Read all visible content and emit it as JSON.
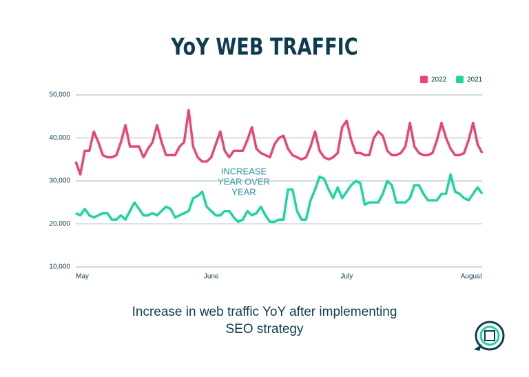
{
  "chart_data": {
    "type": "line",
    "title": "YoY WEB TRAFFIC",
    "caption": [
      "Increase in web traffic YoY after implementing",
      "SEO strategy"
    ],
    "annotation": [
      "INCREASE",
      "YEAR OVER",
      "YEAR"
    ],
    "categories": [
      "May",
      null,
      null,
      null,
      null,
      null,
      null,
      null,
      null,
      null,
      null,
      null,
      null,
      null,
      null,
      null,
      null,
      null,
      null,
      null,
      null,
      null,
      null,
      null,
      null,
      null,
      null,
      null,
      null,
      null,
      "June",
      null,
      null,
      null,
      null,
      null,
      null,
      null,
      null,
      null,
      null,
      null,
      null,
      null,
      null,
      null,
      null,
      null,
      null,
      null,
      null,
      null,
      null,
      null,
      null,
      null,
      null,
      null,
      null,
      null,
      "July",
      null,
      null,
      null,
      null,
      null,
      null,
      null,
      null,
      null,
      null,
      null,
      null,
      null,
      null,
      null,
      null,
      null,
      null,
      null,
      null,
      null,
      null,
      null,
      null,
      null,
      null,
      null,
      "August",
      null,
      null
    ],
    "series": [
      {
        "name": "2022",
        "color": "#e8476f",
        "values": [
          34500,
          31500,
          37000,
          37000,
          41500,
          39000,
          36000,
          35500,
          35500,
          36000,
          39000,
          43000,
          38000,
          38000,
          38000,
          35500,
          37500,
          39000,
          43000,
          39000,
          36000,
          36000,
          36000,
          38000,
          39000,
          46500,
          38000,
          35500,
          34500,
          34500,
          35500,
          38500,
          41500,
          37000,
          35500,
          37000,
          37000,
          37000,
          39500,
          42500,
          37500,
          36500,
          36000,
          35500,
          38500,
          40000,
          40500,
          37500,
          36000,
          35500,
          35000,
          35500,
          38000,
          41500,
          37000,
          35500,
          35000,
          35500,
          36500,
          42500,
          44000,
          39500,
          36500,
          36500,
          36000,
          36000,
          40000,
          41500,
          40500,
          37000,
          36000,
          36000,
          36500,
          38000,
          43500,
          38000,
          36500,
          36000,
          36000,
          36500,
          39500,
          43500,
          40000,
          37500,
          36000,
          36000,
          36500,
          39500,
          43500,
          38500,
          36500
        ]
      },
      {
        "name": "2021",
        "color": "#1ed4a0",
        "values": [
          22500,
          22000,
          23500,
          22000,
          21500,
          22000,
          22500,
          22500,
          21000,
          21000,
          22000,
          21000,
          23000,
          25000,
          23500,
          22000,
          22000,
          22500,
          22000,
          23000,
          24000,
          23500,
          21500,
          22000,
          22500,
          23000,
          26000,
          26500,
          27500,
          24000,
          23000,
          22000,
          22000,
          23000,
          23000,
          21500,
          20500,
          21000,
          23000,
          22000,
          22500,
          24000,
          22000,
          20500,
          20500,
          21000,
          21000,
          28000,
          28000,
          23000,
          21000,
          21000,
          25500,
          28000,
          31000,
          30500,
          28000,
          26000,
          28500,
          26000,
          27500,
          29000,
          30000,
          29500,
          24500,
          25000,
          25000,
          25000,
          27000,
          30000,
          29000,
          25000,
          25000,
          25000,
          26000,
          29000,
          29000,
          27000,
          25500,
          25500,
          25500,
          27000,
          27000,
          31500,
          27500,
          27000,
          26000,
          25500,
          27000,
          28500,
          27000
        ]
      }
    ],
    "ylim": [
      10000,
      50000
    ],
    "yticks": [
      {
        "value": 10000,
        "label": "10,000"
      },
      {
        "value": 20000,
        "label": "20,000"
      },
      {
        "value": 30000,
        "label": "30,000"
      },
      {
        "value": 40000,
        "label": "40,000"
      },
      {
        "value": 50000,
        "label": "50,000"
      }
    ],
    "grid": true
  }
}
